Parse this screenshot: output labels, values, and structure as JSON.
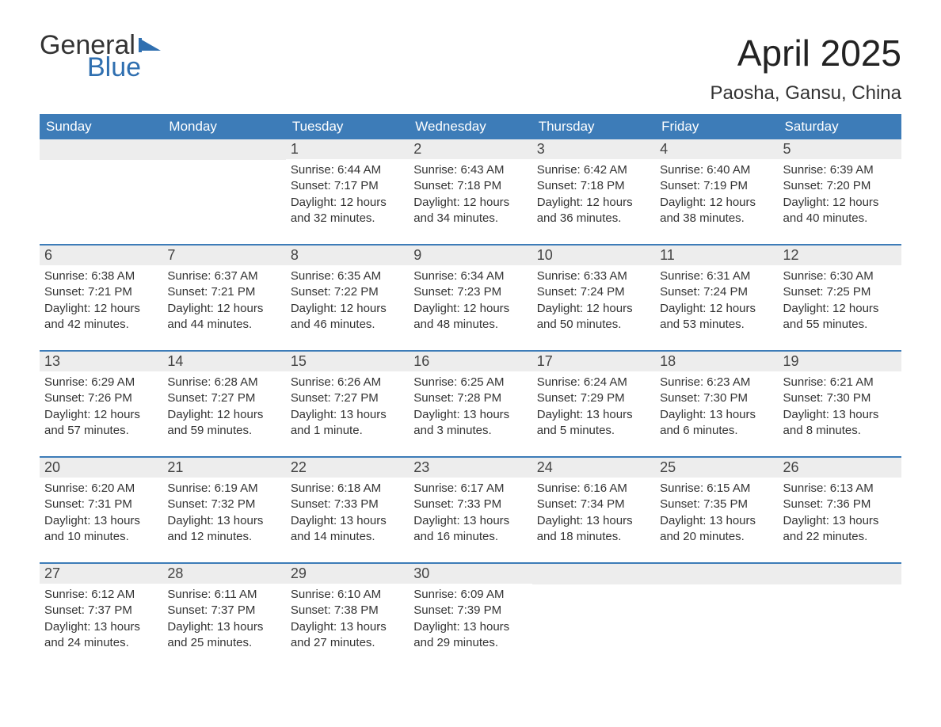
{
  "logo": {
    "word1": "General",
    "word2": "Blue",
    "word1_color": "#333333",
    "word2_color": "#2f6fb0",
    "flag_color": "#2f6fb0"
  },
  "title": {
    "month": "April 2025",
    "location": "Paosha, Gansu, China"
  },
  "styling": {
    "header_bg": "#3d7cb8",
    "header_fg": "#ffffff",
    "daynum_bg": "#ededed",
    "daynum_fg": "#444444",
    "body_fg": "#333333",
    "week_border": "#3d7cb8",
    "font_family": "Arial, Helvetica, sans-serif",
    "title_fontsize": 46,
    "location_fontsize": 24,
    "dayheader_fontsize": 17,
    "daynum_fontsize": 18,
    "body_fontsize": 15
  },
  "day_headers": [
    "Sunday",
    "Monday",
    "Tuesday",
    "Wednesday",
    "Thursday",
    "Friday",
    "Saturday"
  ],
  "weeks": [
    [
      {
        "day": "",
        "sunrise": "",
        "sunset": "",
        "daylight": ""
      },
      {
        "day": "",
        "sunrise": "",
        "sunset": "",
        "daylight": ""
      },
      {
        "day": "1",
        "sunrise": "Sunrise: 6:44 AM",
        "sunset": "Sunset: 7:17 PM",
        "daylight": "Daylight: 12 hours and 32 minutes."
      },
      {
        "day": "2",
        "sunrise": "Sunrise: 6:43 AM",
        "sunset": "Sunset: 7:18 PM",
        "daylight": "Daylight: 12 hours and 34 minutes."
      },
      {
        "day": "3",
        "sunrise": "Sunrise: 6:42 AM",
        "sunset": "Sunset: 7:18 PM",
        "daylight": "Daylight: 12 hours and 36 minutes."
      },
      {
        "day": "4",
        "sunrise": "Sunrise: 6:40 AM",
        "sunset": "Sunset: 7:19 PM",
        "daylight": "Daylight: 12 hours and 38 minutes."
      },
      {
        "day": "5",
        "sunrise": "Sunrise: 6:39 AM",
        "sunset": "Sunset: 7:20 PM",
        "daylight": "Daylight: 12 hours and 40 minutes."
      }
    ],
    [
      {
        "day": "6",
        "sunrise": "Sunrise: 6:38 AM",
        "sunset": "Sunset: 7:21 PM",
        "daylight": "Daylight: 12 hours and 42 minutes."
      },
      {
        "day": "7",
        "sunrise": "Sunrise: 6:37 AM",
        "sunset": "Sunset: 7:21 PM",
        "daylight": "Daylight: 12 hours and 44 minutes."
      },
      {
        "day": "8",
        "sunrise": "Sunrise: 6:35 AM",
        "sunset": "Sunset: 7:22 PM",
        "daylight": "Daylight: 12 hours and 46 minutes."
      },
      {
        "day": "9",
        "sunrise": "Sunrise: 6:34 AM",
        "sunset": "Sunset: 7:23 PM",
        "daylight": "Daylight: 12 hours and 48 minutes."
      },
      {
        "day": "10",
        "sunrise": "Sunrise: 6:33 AM",
        "sunset": "Sunset: 7:24 PM",
        "daylight": "Daylight: 12 hours and 50 minutes."
      },
      {
        "day": "11",
        "sunrise": "Sunrise: 6:31 AM",
        "sunset": "Sunset: 7:24 PM",
        "daylight": "Daylight: 12 hours and 53 minutes."
      },
      {
        "day": "12",
        "sunrise": "Sunrise: 6:30 AM",
        "sunset": "Sunset: 7:25 PM",
        "daylight": "Daylight: 12 hours and 55 minutes."
      }
    ],
    [
      {
        "day": "13",
        "sunrise": "Sunrise: 6:29 AM",
        "sunset": "Sunset: 7:26 PM",
        "daylight": "Daylight: 12 hours and 57 minutes."
      },
      {
        "day": "14",
        "sunrise": "Sunrise: 6:28 AM",
        "sunset": "Sunset: 7:27 PM",
        "daylight": "Daylight: 12 hours and 59 minutes."
      },
      {
        "day": "15",
        "sunrise": "Sunrise: 6:26 AM",
        "sunset": "Sunset: 7:27 PM",
        "daylight": "Daylight: 13 hours and 1 minute."
      },
      {
        "day": "16",
        "sunrise": "Sunrise: 6:25 AM",
        "sunset": "Sunset: 7:28 PM",
        "daylight": "Daylight: 13 hours and 3 minutes."
      },
      {
        "day": "17",
        "sunrise": "Sunrise: 6:24 AM",
        "sunset": "Sunset: 7:29 PM",
        "daylight": "Daylight: 13 hours and 5 minutes."
      },
      {
        "day": "18",
        "sunrise": "Sunrise: 6:23 AM",
        "sunset": "Sunset: 7:30 PM",
        "daylight": "Daylight: 13 hours and 6 minutes."
      },
      {
        "day": "19",
        "sunrise": "Sunrise: 6:21 AM",
        "sunset": "Sunset: 7:30 PM",
        "daylight": "Daylight: 13 hours and 8 minutes."
      }
    ],
    [
      {
        "day": "20",
        "sunrise": "Sunrise: 6:20 AM",
        "sunset": "Sunset: 7:31 PM",
        "daylight": "Daylight: 13 hours and 10 minutes."
      },
      {
        "day": "21",
        "sunrise": "Sunrise: 6:19 AM",
        "sunset": "Sunset: 7:32 PM",
        "daylight": "Daylight: 13 hours and 12 minutes."
      },
      {
        "day": "22",
        "sunrise": "Sunrise: 6:18 AM",
        "sunset": "Sunset: 7:33 PM",
        "daylight": "Daylight: 13 hours and 14 minutes."
      },
      {
        "day": "23",
        "sunrise": "Sunrise: 6:17 AM",
        "sunset": "Sunset: 7:33 PM",
        "daylight": "Daylight: 13 hours and 16 minutes."
      },
      {
        "day": "24",
        "sunrise": "Sunrise: 6:16 AM",
        "sunset": "Sunset: 7:34 PM",
        "daylight": "Daylight: 13 hours and 18 minutes."
      },
      {
        "day": "25",
        "sunrise": "Sunrise: 6:15 AM",
        "sunset": "Sunset: 7:35 PM",
        "daylight": "Daylight: 13 hours and 20 minutes."
      },
      {
        "day": "26",
        "sunrise": "Sunrise: 6:13 AM",
        "sunset": "Sunset: 7:36 PM",
        "daylight": "Daylight: 13 hours and 22 minutes."
      }
    ],
    [
      {
        "day": "27",
        "sunrise": "Sunrise: 6:12 AM",
        "sunset": "Sunset: 7:37 PM",
        "daylight": "Daylight: 13 hours and 24 minutes."
      },
      {
        "day": "28",
        "sunrise": "Sunrise: 6:11 AM",
        "sunset": "Sunset: 7:37 PM",
        "daylight": "Daylight: 13 hours and 25 minutes."
      },
      {
        "day": "29",
        "sunrise": "Sunrise: 6:10 AM",
        "sunset": "Sunset: 7:38 PM",
        "daylight": "Daylight: 13 hours and 27 minutes."
      },
      {
        "day": "30",
        "sunrise": "Sunrise: 6:09 AM",
        "sunset": "Sunset: 7:39 PM",
        "daylight": "Daylight: 13 hours and 29 minutes."
      },
      {
        "day": "",
        "sunrise": "",
        "sunset": "",
        "daylight": ""
      },
      {
        "day": "",
        "sunrise": "",
        "sunset": "",
        "daylight": ""
      },
      {
        "day": "",
        "sunrise": "",
        "sunset": "",
        "daylight": ""
      }
    ]
  ]
}
